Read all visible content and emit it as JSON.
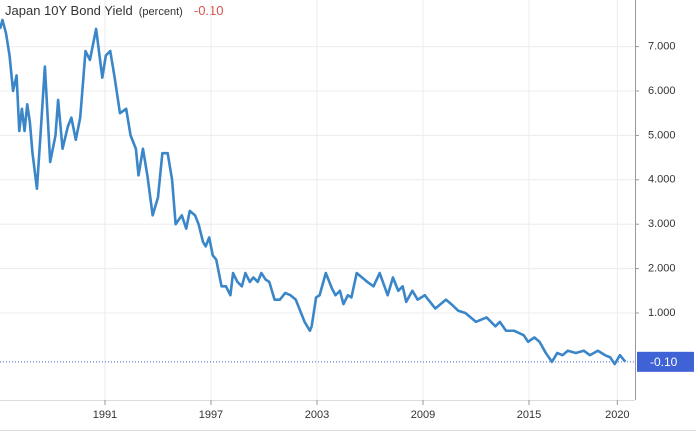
{
  "chart_data": {
    "type": "line",
    "title": "Japan 10Y Bond Yield",
    "subtitle": "(percent)",
    "current": {
      "value": -0.1,
      "label": "-0.10"
    },
    "color": "#3a86c8",
    "x": [
      1985.06,
      1985.2,
      1985.4,
      1985.6,
      1985.8,
      1986.0,
      1986.15,
      1986.3,
      1986.45,
      1986.6,
      1986.75,
      1986.9,
      1987.15,
      1987.35,
      1987.6,
      1987.9,
      1988.2,
      1988.35,
      1988.6,
      1988.9,
      1989.1,
      1989.35,
      1989.6,
      1989.9,
      1990.15,
      1990.3,
      1990.5,
      1990.85,
      1991.05,
      1991.3,
      1991.55,
      1991.85,
      1992.2,
      1992.45,
      1992.75,
      1992.9,
      1993.15,
      1993.4,
      1993.7,
      1994.0,
      1994.25,
      1994.55,
      1994.8,
      1995.0,
      1995.35,
      1995.6,
      1995.8,
      1996.1,
      1996.3,
      1996.55,
      1996.7,
      1996.9,
      1997.1,
      1997.3,
      1997.6,
      1997.85,
      1998.1,
      1998.25,
      1998.5,
      1998.75,
      1998.95,
      1999.2,
      1999.4,
      1999.65,
      1999.85,
      2000.1,
      2000.3,
      2000.6,
      2000.9,
      2001.2,
      2001.5,
      2001.8,
      2002.1,
      2002.3,
      2002.6,
      2002.7,
      2002.95,
      2003.15,
      2003.5,
      2003.85,
      2004.05,
      2004.3,
      2004.5,
      2004.75,
      2004.95,
      2005.25,
      2005.55,
      2005.85,
      2006.2,
      2006.55,
      2007.0,
      2007.3,
      2007.6,
      2007.85,
      2008.05,
      2008.4,
      2008.7,
      2009.1,
      2009.7,
      2010.3,
      2010.6,
      2011.0,
      2011.4,
      2012.0,
      2012.6,
      2013.1,
      2013.35,
      2013.7,
      2014.15,
      2014.7,
      2014.95,
      2015.3,
      2015.6,
      2015.95,
      2016.3,
      2016.6,
      2016.9,
      2017.2,
      2017.65,
      2018.1,
      2018.45,
      2018.9,
      2019.3,
      2019.6,
      2019.85,
      2020.15,
      2020.45
    ],
    "values": [
      7.4,
      7.6,
      7.3,
      6.8,
      6.0,
      6.35,
      5.1,
      5.6,
      5.1,
      5.7,
      5.3,
      4.6,
      3.8,
      5.0,
      6.55,
      4.4,
      5.0,
      5.8,
      4.7,
      5.2,
      5.4,
      4.9,
      5.4,
      6.9,
      6.7,
      7.0,
      7.4,
      6.3,
      6.8,
      6.9,
      6.3,
      5.5,
      5.6,
      5.0,
      4.7,
      4.1,
      4.7,
      4.1,
      3.2,
      3.6,
      4.6,
      4.6,
      4.0,
      3.0,
      3.2,
      2.9,
      3.3,
      3.2,
      3.0,
      2.6,
      2.5,
      2.7,
      2.3,
      2.2,
      1.6,
      1.6,
      1.4,
      1.9,
      1.7,
      1.6,
      1.9,
      1.7,
      1.8,
      1.7,
      1.9,
      1.75,
      1.7,
      1.3,
      1.3,
      1.45,
      1.4,
      1.3,
      1.0,
      0.8,
      0.6,
      0.7,
      1.35,
      1.4,
      1.9,
      1.55,
      1.4,
      1.5,
      1.2,
      1.4,
      1.35,
      1.9,
      1.8,
      1.7,
      1.6,
      1.9,
      1.4,
      1.8,
      1.5,
      1.6,
      1.25,
      1.5,
      1.3,
      1.4,
      1.1,
      1.3,
      1.2,
      1.05,
      1.0,
      0.8,
      0.9,
      0.7,
      0.8,
      0.6,
      0.6,
      0.5,
      0.35,
      0.45,
      0.35,
      0.1,
      -0.1,
      0.1,
      0.05,
      0.15,
      0.1,
      0.15,
      0.05,
      0.15,
      0.05,
      0.0,
      -0.15,
      0.05,
      -0.1
    ],
    "xlim": [
      1985.06,
      2021.0
    ],
    "xticks": [
      1991,
      1997,
      2003,
      2009,
      2015,
      2020
    ],
    "ylim": [
      -0.96,
      8.05
    ],
    "yticks": [
      {
        "value": 1,
        "label": "1.000"
      },
      {
        "value": 2,
        "label": "2.000"
      },
      {
        "value": 3,
        "label": "3.000"
      },
      {
        "value": 4,
        "label": "4.000"
      },
      {
        "value": 5,
        "label": "5.000"
      },
      {
        "value": 6,
        "label": "6.000"
      },
      {
        "value": 7,
        "label": "7.000"
      }
    ],
    "grid": true
  }
}
